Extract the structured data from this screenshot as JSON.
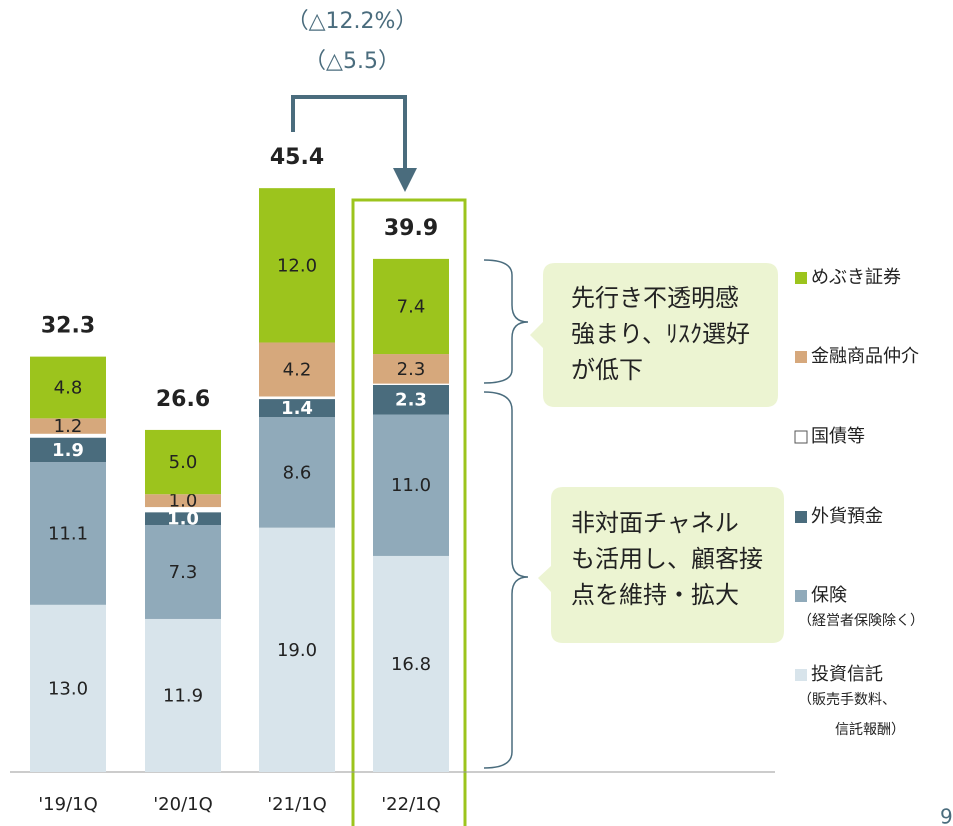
{
  "chart_data": {
    "type": "stacked-bar",
    "categories": [
      "'19/1Q",
      "'20/1Q",
      "'21/1Q",
      "'22/1Q"
    ],
    "ylim": [
      0,
      50
    ],
    "series": [
      {
        "name": "投資信託",
        "note": [
          "（販売手数料、",
          "信託報酬）"
        ],
        "color": "#d8e4eb",
        "values": [
          13.0,
          11.9,
          19.0,
          16.8
        ],
        "value_labels": [
          "13.0",
          "11.9",
          "19.0",
          "16.8"
        ]
      },
      {
        "name": "保険",
        "note": [
          "（経営者保険除く）"
        ],
        "color": "#90aaba",
        "values": [
          11.1,
          7.3,
          8.6,
          11.0
        ],
        "value_labels": [
          "11.1",
          "7.3",
          "8.6",
          "11.0"
        ]
      },
      {
        "name": "外貨預金",
        "color": "#4a6c7d",
        "values": [
          1.9,
          1.0,
          1.4,
          2.3
        ],
        "value_labels": [
          "1.9",
          "1.0",
          "1.4",
          "2.3"
        ]
      },
      {
        "name": "国債等",
        "color": "#ffffff",
        "values": [
          0.3,
          0.4,
          0.2,
          0.1
        ]
      },
      {
        "name": "金融商品仲介",
        "color": "#d6a87c",
        "values": [
          1.2,
          1.0,
          4.2,
          2.3
        ],
        "value_labels": [
          "1.2",
          "1.0",
          "4.2",
          "2.3"
        ]
      },
      {
        "name": "めぶき証券",
        "color": "#9cc41d",
        "values": [
          4.8,
          5.0,
          12.0,
          7.4
        ],
        "value_labels": [
          "4.8",
          "5.0",
          "12.0",
          "7.4"
        ]
      }
    ],
    "totals": [
      32.3,
      26.6,
      45.4,
      39.9
    ],
    "annotations": [
      "（△12.2%）",
      "（△5.5）"
    ],
    "callouts": [
      [
        "先行き不透明感",
        "強まり、ﾘｽｸ選好",
        "が低下"
      ],
      [
        "非対面チャネル",
        "も活用し、顧客接",
        "点を維持・拡大"
      ]
    ],
    "page_number": "9"
  }
}
